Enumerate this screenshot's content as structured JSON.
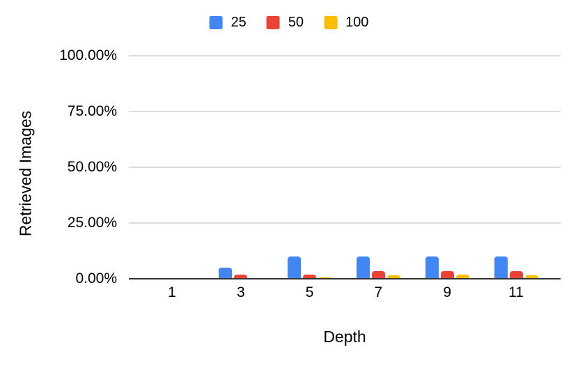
{
  "chart_data": {
    "type": "bar",
    "title": "",
    "xlabel": "Depth",
    "ylabel": "Retrieved Images",
    "categories": [
      "1",
      "3",
      "5",
      "7",
      "9",
      "11"
    ],
    "series": [
      {
        "name": "25",
        "color": "#4285F4",
        "values": [
          0,
          5,
          10,
          10,
          10,
          10
        ]
      },
      {
        "name": "50",
        "color": "#EA4335",
        "values": [
          0,
          1.8,
          1.8,
          3.4,
          3.6,
          3.5
        ]
      },
      {
        "name": "100",
        "color": "#FBBC04",
        "values": [
          0,
          0,
          0.7,
          1.5,
          1.8,
          1.6
        ]
      }
    ],
    "y_ticks": [
      "0.00%",
      "25.00%",
      "50.00%",
      "75.00%",
      "100.00%"
    ],
    "ylim": [
      0,
      100
    ],
    "grid": true,
    "legend_position": "top"
  },
  "colors": {
    "background": "#ffffff",
    "gridline": "#dcdcdc",
    "axis_line": "#333333",
    "text": "#000000"
  }
}
